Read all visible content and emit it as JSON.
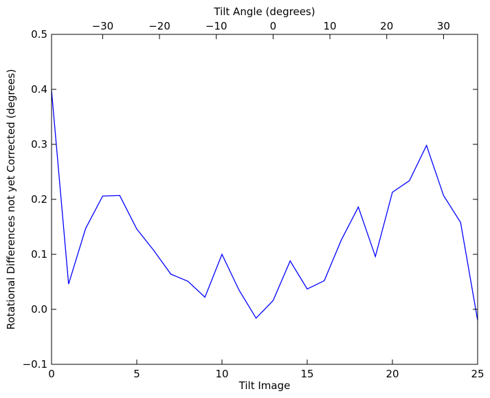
{
  "chart_data": {
    "type": "line",
    "title": "",
    "xlabel": "Tilt Image",
    "ylabel": "Rotational Differences not yet Corrected (degrees)",
    "x2label": "Tilt Angle (degrees)",
    "xlim": [
      0,
      25
    ],
    "ylim": [
      -0.1,
      0.5
    ],
    "x2lim": [
      -39,
      36
    ],
    "xticks": [
      "0",
      "5",
      "10",
      "15",
      "20",
      "25"
    ],
    "xtick_values": [
      0,
      5,
      10,
      15,
      20,
      25
    ],
    "yticks": [
      "−0.1",
      "0.0",
      "0.1",
      "0.2",
      "0.3",
      "0.4",
      "0.5"
    ],
    "ytick_values": [
      -0.1,
      0.0,
      0.1,
      0.2,
      0.3,
      0.4,
      0.5
    ],
    "x2ticks": [
      "−30",
      "−20",
      "−10",
      "0",
      "10",
      "20",
      "30"
    ],
    "x2tick_values": [
      -30,
      -20,
      -10,
      0,
      10,
      20,
      30
    ],
    "grid": false,
    "line_color": "#0000ff",
    "series": [
      {
        "x": [
          0,
          1,
          2,
          3,
          4,
          5,
          6,
          7,
          8,
          9,
          10,
          11,
          12,
          13,
          14,
          15,
          16,
          17,
          18,
          19,
          20,
          21,
          22,
          23,
          24,
          25
        ],
        "values": [
          0.398,
          0.046,
          0.147,
          0.206,
          0.207,
          0.146,
          0.107,
          0.064,
          0.051,
          0.022,
          0.1,
          0.035,
          -0.016,
          0.016,
          0.088,
          0.037,
          0.052,
          0.126,
          0.186,
          0.096,
          0.213,
          0.234,
          0.298,
          0.207,
          0.158,
          -0.02
        ]
      }
    ]
  }
}
